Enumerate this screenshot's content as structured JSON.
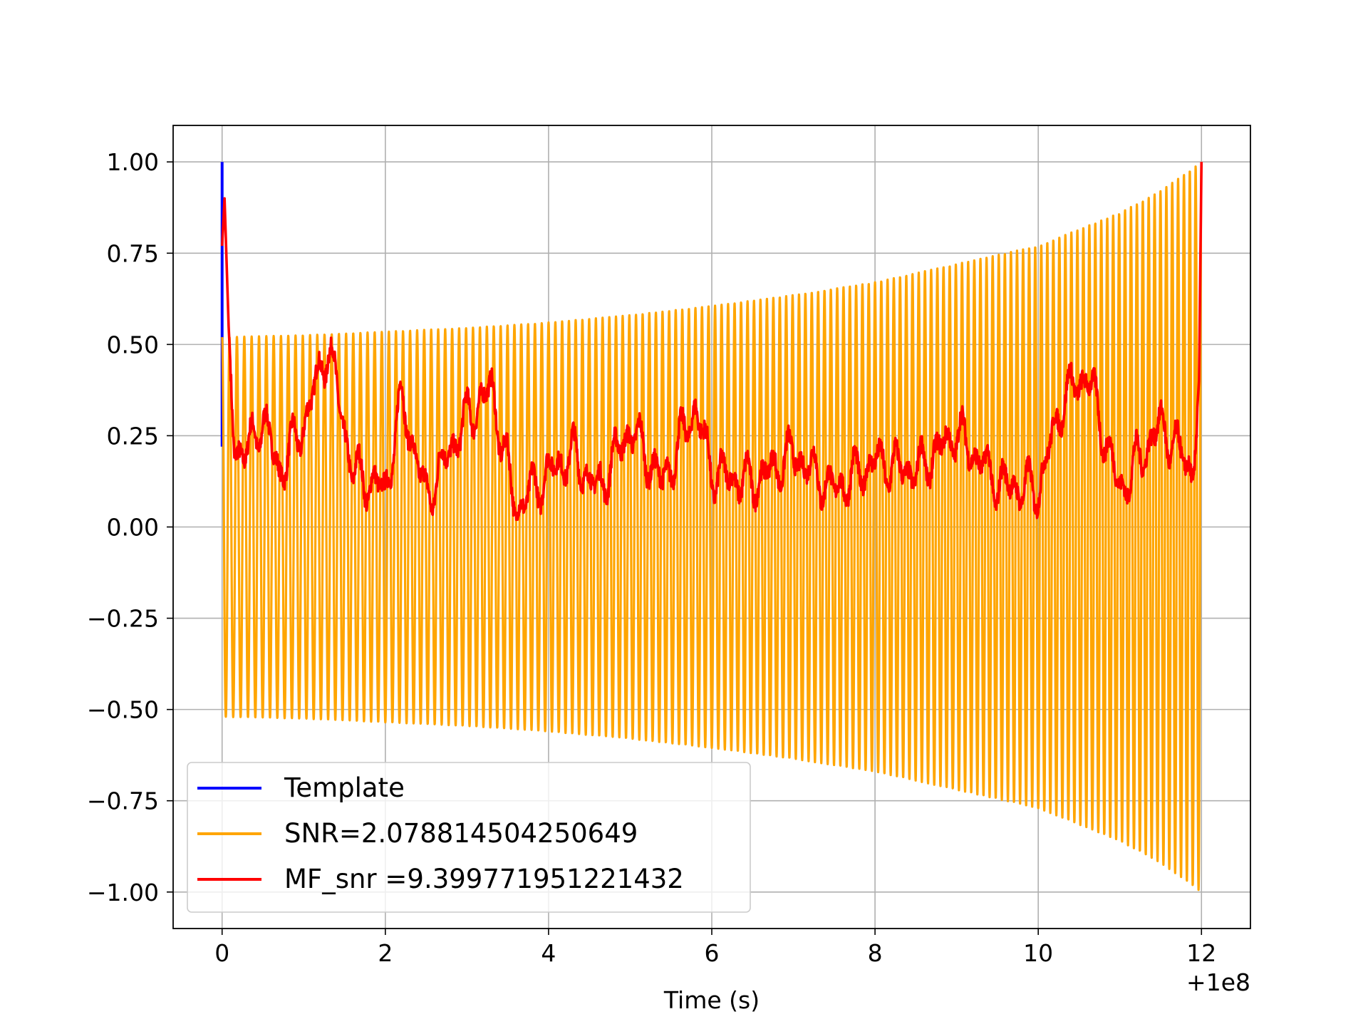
{
  "chart_data": {
    "type": "line",
    "title": "",
    "xlabel": "Time (s)",
    "ylabel": "",
    "x_offset_label": "+1e8",
    "xlim": [
      -0.6,
      12.6
    ],
    "ylim": [
      -1.1,
      1.1
    ],
    "xticks": [
      0,
      2,
      4,
      6,
      8,
      10,
      12
    ],
    "xtick_labels": [
      "0",
      "2",
      "4",
      "6",
      "8",
      "10",
      "12"
    ],
    "yticks": [
      1.0,
      0.75,
      0.5,
      0.25,
      0.0,
      -0.25,
      -0.5,
      -0.75,
      -1.0
    ],
    "ytick_labels": [
      "1.00",
      "0.75",
      "0.50",
      "0.25",
      "0.00",
      "−0.25",
      "−0.50",
      "−0.75",
      "−1.00"
    ],
    "grid": true,
    "legend_position": "lower-left",
    "series": [
      {
        "name": "Template",
        "color": "#0000ff",
        "description_points": {
          "x": [
            0.0,
            0.0
          ],
          "y": [
            0.22,
            1.0
          ]
        }
      },
      {
        "name": "SNR=2.078814504250649",
        "color": "#ffa500",
        "envelope": {
          "x": [
            0.0,
            1,
            2,
            3,
            4,
            5,
            6,
            7,
            8,
            9,
            10,
            11,
            11.5,
            12.0
          ],
          "amplitude": [
            0.52,
            0.525,
            0.535,
            0.545,
            0.56,
            0.58,
            0.605,
            0.635,
            0.67,
            0.72,
            0.77,
            0.86,
            0.92,
            1.0
          ]
        },
        "cycles": 150
      },
      {
        "name": "MF_snr =9.399771951221432",
        "color": "#ff0000",
        "points": {
          "x": [
            0.0,
            0.03,
            0.08,
            0.15,
            0.3,
            0.5,
            0.7,
            1.0,
            1.3,
            1.6,
            2.0,
            2.2,
            2.5,
            3.0,
            3.3,
            3.6,
            4.0,
            4.3,
            4.6,
            5.0,
            5.4,
            5.8,
            6.0,
            6.5,
            7.0,
            7.5,
            8.0,
            8.5,
            9.0,
            9.5,
            10.0,
            10.3,
            10.6,
            11.0,
            11.5,
            11.9,
            11.97,
            12.0
          ],
          "y": [
            0.77,
            0.9,
            0.55,
            0.22,
            0.2,
            0.3,
            0.15,
            0.28,
            0.5,
            0.15,
            0.1,
            0.35,
            0.08,
            0.3,
            0.38,
            0.05,
            0.15,
            0.2,
            0.1,
            0.27,
            0.12,
            0.33,
            0.15,
            0.12,
            0.2,
            0.1,
            0.18,
            0.15,
            0.26,
            0.12,
            0.1,
            0.35,
            0.42,
            0.1,
            0.28,
            0.15,
            0.4,
            1.0
          ]
        }
      }
    ]
  }
}
